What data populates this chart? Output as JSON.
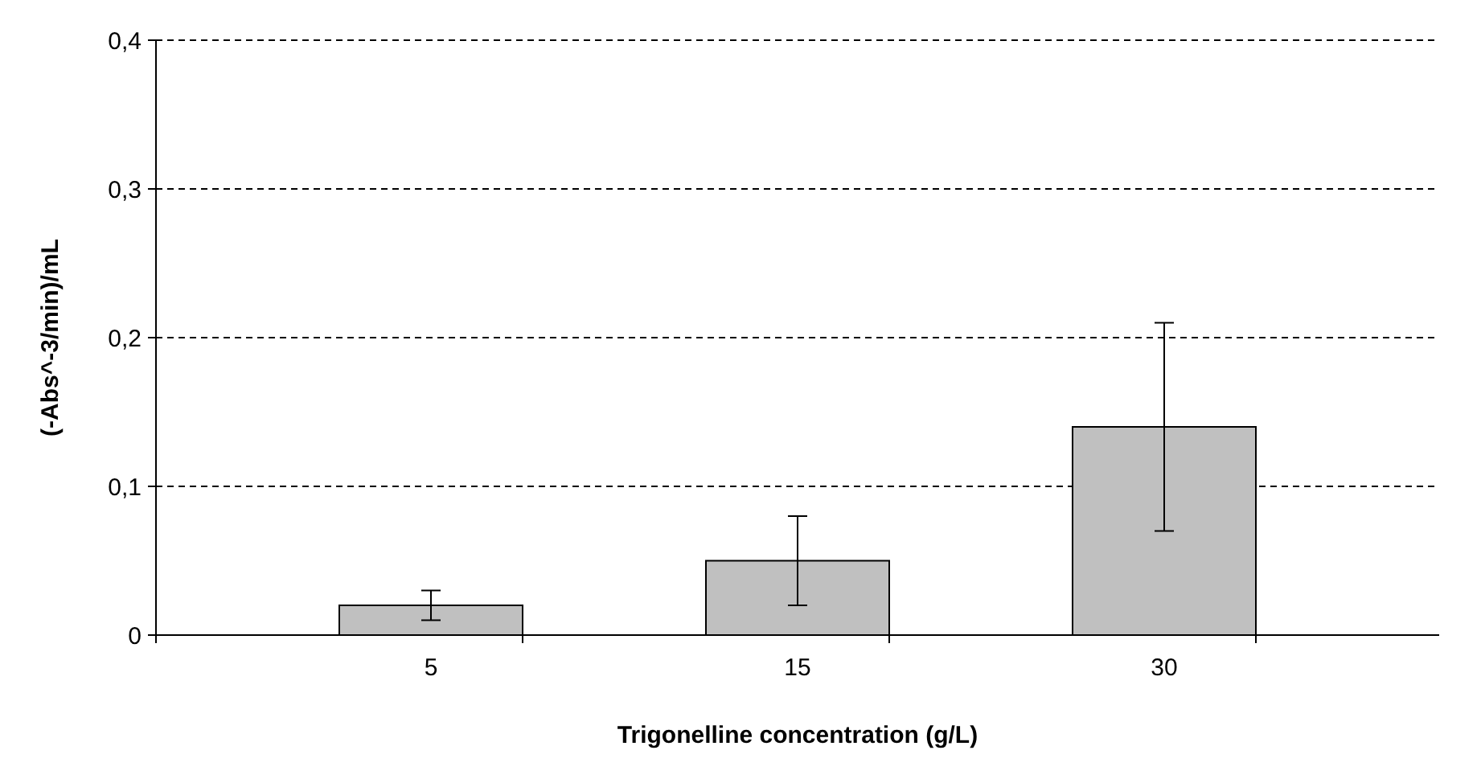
{
  "chart_data": {
    "type": "bar",
    "xlabel": "Trigonelline concentration (g/L)",
    "ylabel": "(-Abs^-3/min)/mL",
    "categories": [
      "5",
      "15",
      "30"
    ],
    "values": [
      0.02,
      0.05,
      0.14
    ],
    "errors": [
      0.01,
      0.03,
      0.07
    ],
    "color": "#c0c0c0",
    "ylim": [
      0,
      0.4
    ],
    "yticks": [
      0,
      {
        "value": 0.1,
        "label": "0,1"
      },
      {
        "value": 0.2,
        "label": "0,2"
      },
      {
        "value": 0.3,
        "label": "0,3"
      },
      {
        "value": 0.4,
        "label": "0,4"
      }
    ],
    "grid": "y"
  }
}
